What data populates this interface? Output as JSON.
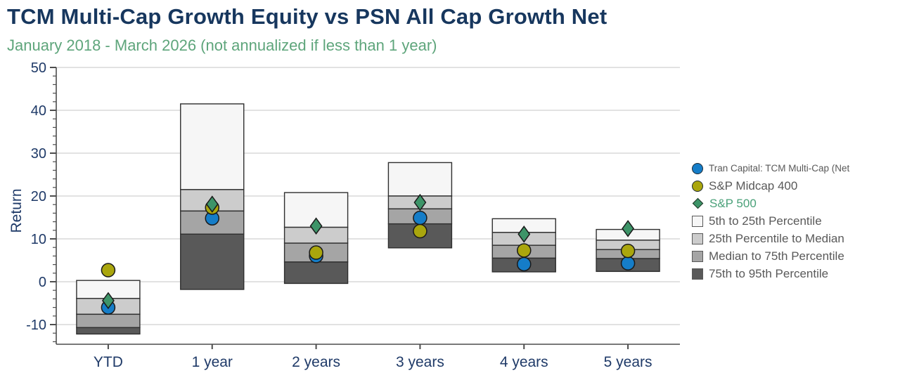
{
  "header": {
    "title": "TCM Multi-Cap Growth Equity vs PSN All Cap Growth Net",
    "subtitle": "January 2018 - March 2026 (not annualized if less than 1 year)"
  },
  "colors": {
    "title_navy": "#17375e",
    "subtitle_green": "#5ea57b",
    "axis_text_navy": "#1f3a68",
    "legend_text_gray": "#595959",
    "legend_text_green": "#4aa179",
    "grid_line": "#d9d9d9",
    "axis_line": "#4d4d4d",
    "band_border": "#2f2f2f",
    "marker_border": "#1a1a1a",
    "tcm_blue": "#157dc8",
    "midcap_olive": "#aaa60d",
    "sp500_green": "#3d9468",
    "band_5_25": "#f6f6f6",
    "band_25_median": "#cccccc",
    "band_median_75": "#a5a5a5",
    "band_75_95": "#595959"
  },
  "chart_data": {
    "type": "bar",
    "subtype": "floating-percentile-range-bars-with-scatter-overlay",
    "title": "TCM Multi-Cap Growth Equity vs PSN All Cap Growth Net",
    "subtitle": "January 2018 - March 2026 (not annualized if less than 1 year)",
    "xlabel": "",
    "ylabel": "Return",
    "categories": [
      "YTD",
      "1 year",
      "2 years",
      "3 years",
      "4 years",
      "5 years"
    ],
    "yticks": [
      50,
      40,
      30,
      20,
      10,
      0,
      -10
    ],
    "minor_tick_step": 2,
    "ylim": [
      -14.6,
      50
    ],
    "grid": true,
    "legend_position": "right",
    "percentile_levels": [
      "p5",
      "p25",
      "median",
      "p75",
      "p95"
    ],
    "percentile_bars": [
      {
        "category": "YTD",
        "p5": 0.3,
        "p25": -3.9,
        "median": -7.6,
        "p75": -10.7,
        "p95": -12.2
      },
      {
        "category": "1 year",
        "p5": 41.5,
        "p25": 21.5,
        "median": 16.5,
        "p75": 11.1,
        "p95": -1.8
      },
      {
        "category": "2 years",
        "p5": 20.8,
        "p25": 12.7,
        "median": 9.0,
        "p75": 4.6,
        "p95": -0.4
      },
      {
        "category": "3 years",
        "p5": 27.8,
        "p25": 20.0,
        "median": 17.0,
        "p75": 13.5,
        "p95": 7.9
      },
      {
        "category": "4 years",
        "p5": 14.7,
        "p25": 11.5,
        "median": 8.5,
        "p75": 5.5,
        "p95": 2.3
      },
      {
        "category": "5 years",
        "p5": 12.2,
        "p25": 9.7,
        "median": 7.5,
        "p75": 5.4,
        "p95": 2.4
      }
    ],
    "series": [
      {
        "name": "Tran Capital: TCM Multi-Cap (Net",
        "marker": "circle",
        "color": "#157dc8",
        "values": [
          -6.0,
          14.8,
          6.0,
          14.9,
          4.1,
          4.3
        ]
      },
      {
        "name": "S&P Midcap 400",
        "marker": "circle",
        "color": "#aaa60d",
        "values": [
          2.7,
          17.3,
          6.8,
          11.8,
          7.3,
          7.2
        ]
      },
      {
        "name": "S&P 500",
        "marker": "diamond",
        "color": "#3d9468",
        "values": [
          -4.4,
          18.1,
          13.0,
          18.5,
          11.1,
          12.4
        ]
      }
    ]
  },
  "legend": {
    "items": [
      {
        "label": "Tran Capital: TCM Multi-Cap (Net",
        "marker": "circle",
        "color": "#157dc8",
        "text_class": "small"
      },
      {
        "label": "S&P Midcap 400",
        "marker": "circle",
        "color": "#aaa60d",
        "text_class": ""
      },
      {
        "label": "S&P 500",
        "marker": "diamond",
        "color": "#3d9468",
        "text_class": "green"
      },
      {
        "label": "5th to 25th Percentile",
        "marker": "square",
        "color": "#f6f6f6",
        "text_class": ""
      },
      {
        "label": "25th Percentile to Median",
        "marker": "square",
        "color": "#cccccc",
        "text_class": ""
      },
      {
        "label": "Median to 75th Percentile",
        "marker": "square",
        "color": "#a5a5a5",
        "text_class": ""
      },
      {
        "label": "75th to 95th Percentile",
        "marker": "square",
        "color": "#595959",
        "text_class": ""
      }
    ]
  }
}
